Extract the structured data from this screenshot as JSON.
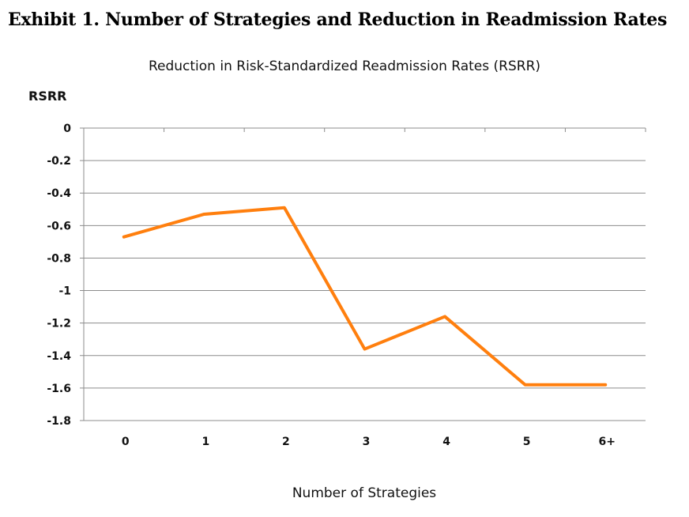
{
  "exhibit_title": "Exhibit 1. Number of Strategies and Reduction in Readmission Rates",
  "chart_data": {
    "type": "line",
    "title": "Reduction in Risk-Standardized Readmission Rates (RSRR)",
    "ylabel": "RSRR",
    "xlabel": "Number of Strategies",
    "categories": [
      "0",
      "1",
      "2",
      "3",
      "4",
      "5",
      "6+"
    ],
    "series": [
      {
        "values": [
          -0.67,
          -0.53,
          -0.49,
          -1.36,
          -1.16,
          -1.58,
          -1.58
        ],
        "color": "#ff7f0e"
      }
    ],
    "ylim": [
      -1.8,
      0
    ],
    "yticks": [
      0,
      -0.2,
      -0.4,
      -0.6,
      -0.8,
      -1,
      -1.2,
      -1.4,
      -1.6,
      -1.8
    ],
    "ytick_labels": [
      "0",
      "-0.2",
      "-0.4",
      "-0.6",
      "-0.8",
      "-1",
      "-1.2",
      "-1.4",
      "-1.6",
      "-1.8"
    ],
    "grid": true,
    "legend": "none"
  }
}
